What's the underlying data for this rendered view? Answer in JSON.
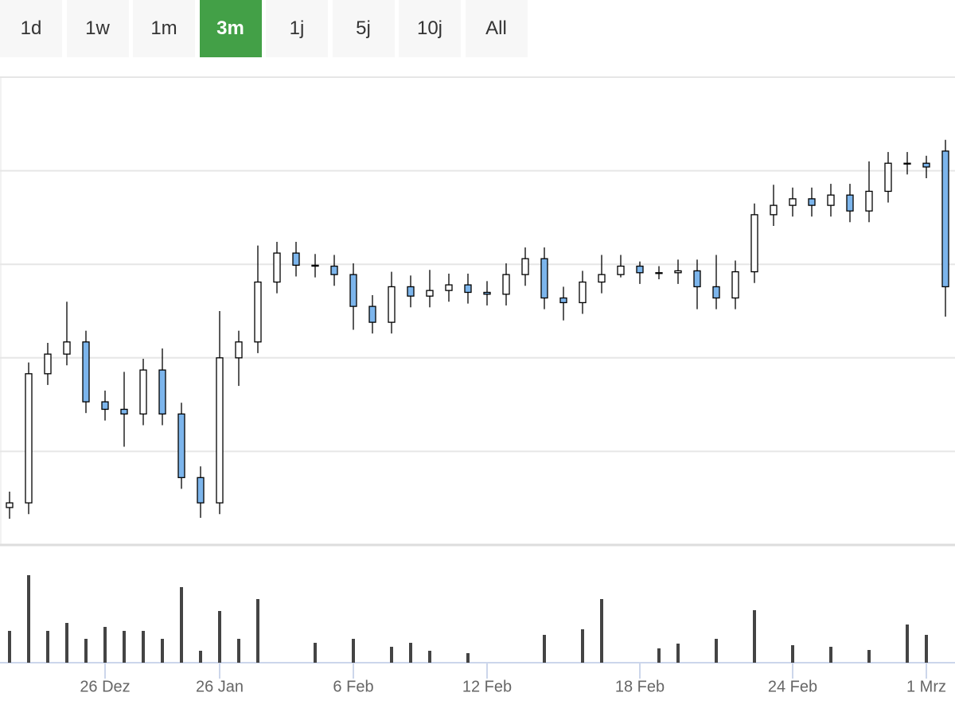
{
  "tabs": {
    "items": [
      "1d",
      "1w",
      "1m",
      "3m",
      "1j",
      "5j",
      "10j",
      "All"
    ],
    "active": 3
  },
  "chart_data": {
    "type": "candlestick",
    "categories": [
      null,
      null,
      null,
      null,
      null,
      "26 Dez",
      null,
      null,
      null,
      null,
      null,
      "26 Jan",
      null,
      null,
      null,
      null,
      null,
      null,
      "6 Feb",
      null,
      null,
      null,
      null,
      null,
      null,
      "12 Feb",
      null,
      null,
      null,
      null,
      null,
      null,
      null,
      "18 Feb",
      null,
      null,
      null,
      null,
      null,
      null,
      null,
      "24 Feb",
      null,
      null,
      null,
      null,
      null,
      null,
      "1 Mrz",
      null
    ],
    "open": [
      0.4,
      0.45,
      1.83,
      2.04,
      2.17,
      1.53,
      1.45,
      1.4,
      1.87,
      1.4,
      0.72,
      0.45,
      2.0,
      2.17,
      2.81,
      3.12,
      2.99,
      2.98,
      2.89,
      2.55,
      2.38,
      2.76,
      2.66,
      2.72,
      2.78,
      2.7,
      2.68,
      2.89,
      3.06,
      2.64,
      2.59,
      2.81,
      2.89,
      2.98,
      2.91,
      2.91,
      2.93,
      2.76,
      2.64,
      2.92,
      3.53,
      3.63,
      3.7,
      3.63,
      3.74,
      3.57,
      3.78,
      4.08,
      4.08,
      4.21
    ],
    "high": [
      0.57,
      1.95,
      2.16,
      2.6,
      2.29,
      1.65,
      1.85,
      1.99,
      2.1,
      1.52,
      0.84,
      2.5,
      2.29,
      3.2,
      3.24,
      3.24,
      3.11,
      3.1,
      3.01,
      2.67,
      2.92,
      2.88,
      2.94,
      2.9,
      2.9,
      2.82,
      3.01,
      3.18,
      3.18,
      2.76,
      2.93,
      3.1,
      3.1,
      3.03,
      2.98,
      3.05,
      3.05,
      3.1,
      3.04,
      3.65,
      3.85,
      3.82,
      3.82,
      3.86,
      3.86,
      4.1,
      4.2,
      4.2,
      4.16,
      4.33
    ],
    "low": [
      0.28,
      0.33,
      1.71,
      1.92,
      1.41,
      1.33,
      1.05,
      1.28,
      1.28,
      0.6,
      0.29,
      0.33,
      1.7,
      2.05,
      2.69,
      2.87,
      2.86,
      2.77,
      2.3,
      2.26,
      2.26,
      2.54,
      2.54,
      2.6,
      2.58,
      2.56,
      2.56,
      2.77,
      2.52,
      2.4,
      2.47,
      2.69,
      2.86,
      2.79,
      2.84,
      2.79,
      2.52,
      2.52,
      2.52,
      2.8,
      3.41,
      3.51,
      3.51,
      3.51,
      3.45,
      3.45,
      3.66,
      3.96,
      3.92,
      2.44
    ],
    "close": [
      0.45,
      1.83,
      2.04,
      2.17,
      1.53,
      1.45,
      1.4,
      1.87,
      1.4,
      0.72,
      0.45,
      2.0,
      2.17,
      2.81,
      3.12,
      2.99,
      2.98,
      2.89,
      2.55,
      2.38,
      2.76,
      2.66,
      2.72,
      2.78,
      2.7,
      2.68,
      2.89,
      3.06,
      2.64,
      2.59,
      2.81,
      2.89,
      2.98,
      2.91,
      2.91,
      2.93,
      2.76,
      2.64,
      2.92,
      3.53,
      3.63,
      3.7,
      3.63,
      3.74,
      3.57,
      3.78,
      4.08,
      4.08,
      4.04,
      2.76
    ],
    "volume": [
      40,
      110,
      40,
      50,
      30,
      45,
      40,
      40,
      30,
      95,
      15,
      65,
      30,
      80,
      0,
      0,
      25,
      0,
      30,
      0,
      20,
      25,
      15,
      0,
      12,
      0,
      0,
      0,
      35,
      0,
      42,
      80,
      0,
      0,
      18,
      24,
      0,
      30,
      0,
      66,
      0,
      22,
      0,
      20,
      0,
      16,
      0,
      48,
      35,
      0
    ],
    "ylim": [
      0,
      5
    ],
    "yticks": [
      1,
      2,
      3,
      4
    ],
    "volume_ylim": [
      0,
      143
    ],
    "grid": true,
    "up_color": "#ffffff",
    "down_color": "#7cb5ec",
    "volume_color": "#444444"
  }
}
